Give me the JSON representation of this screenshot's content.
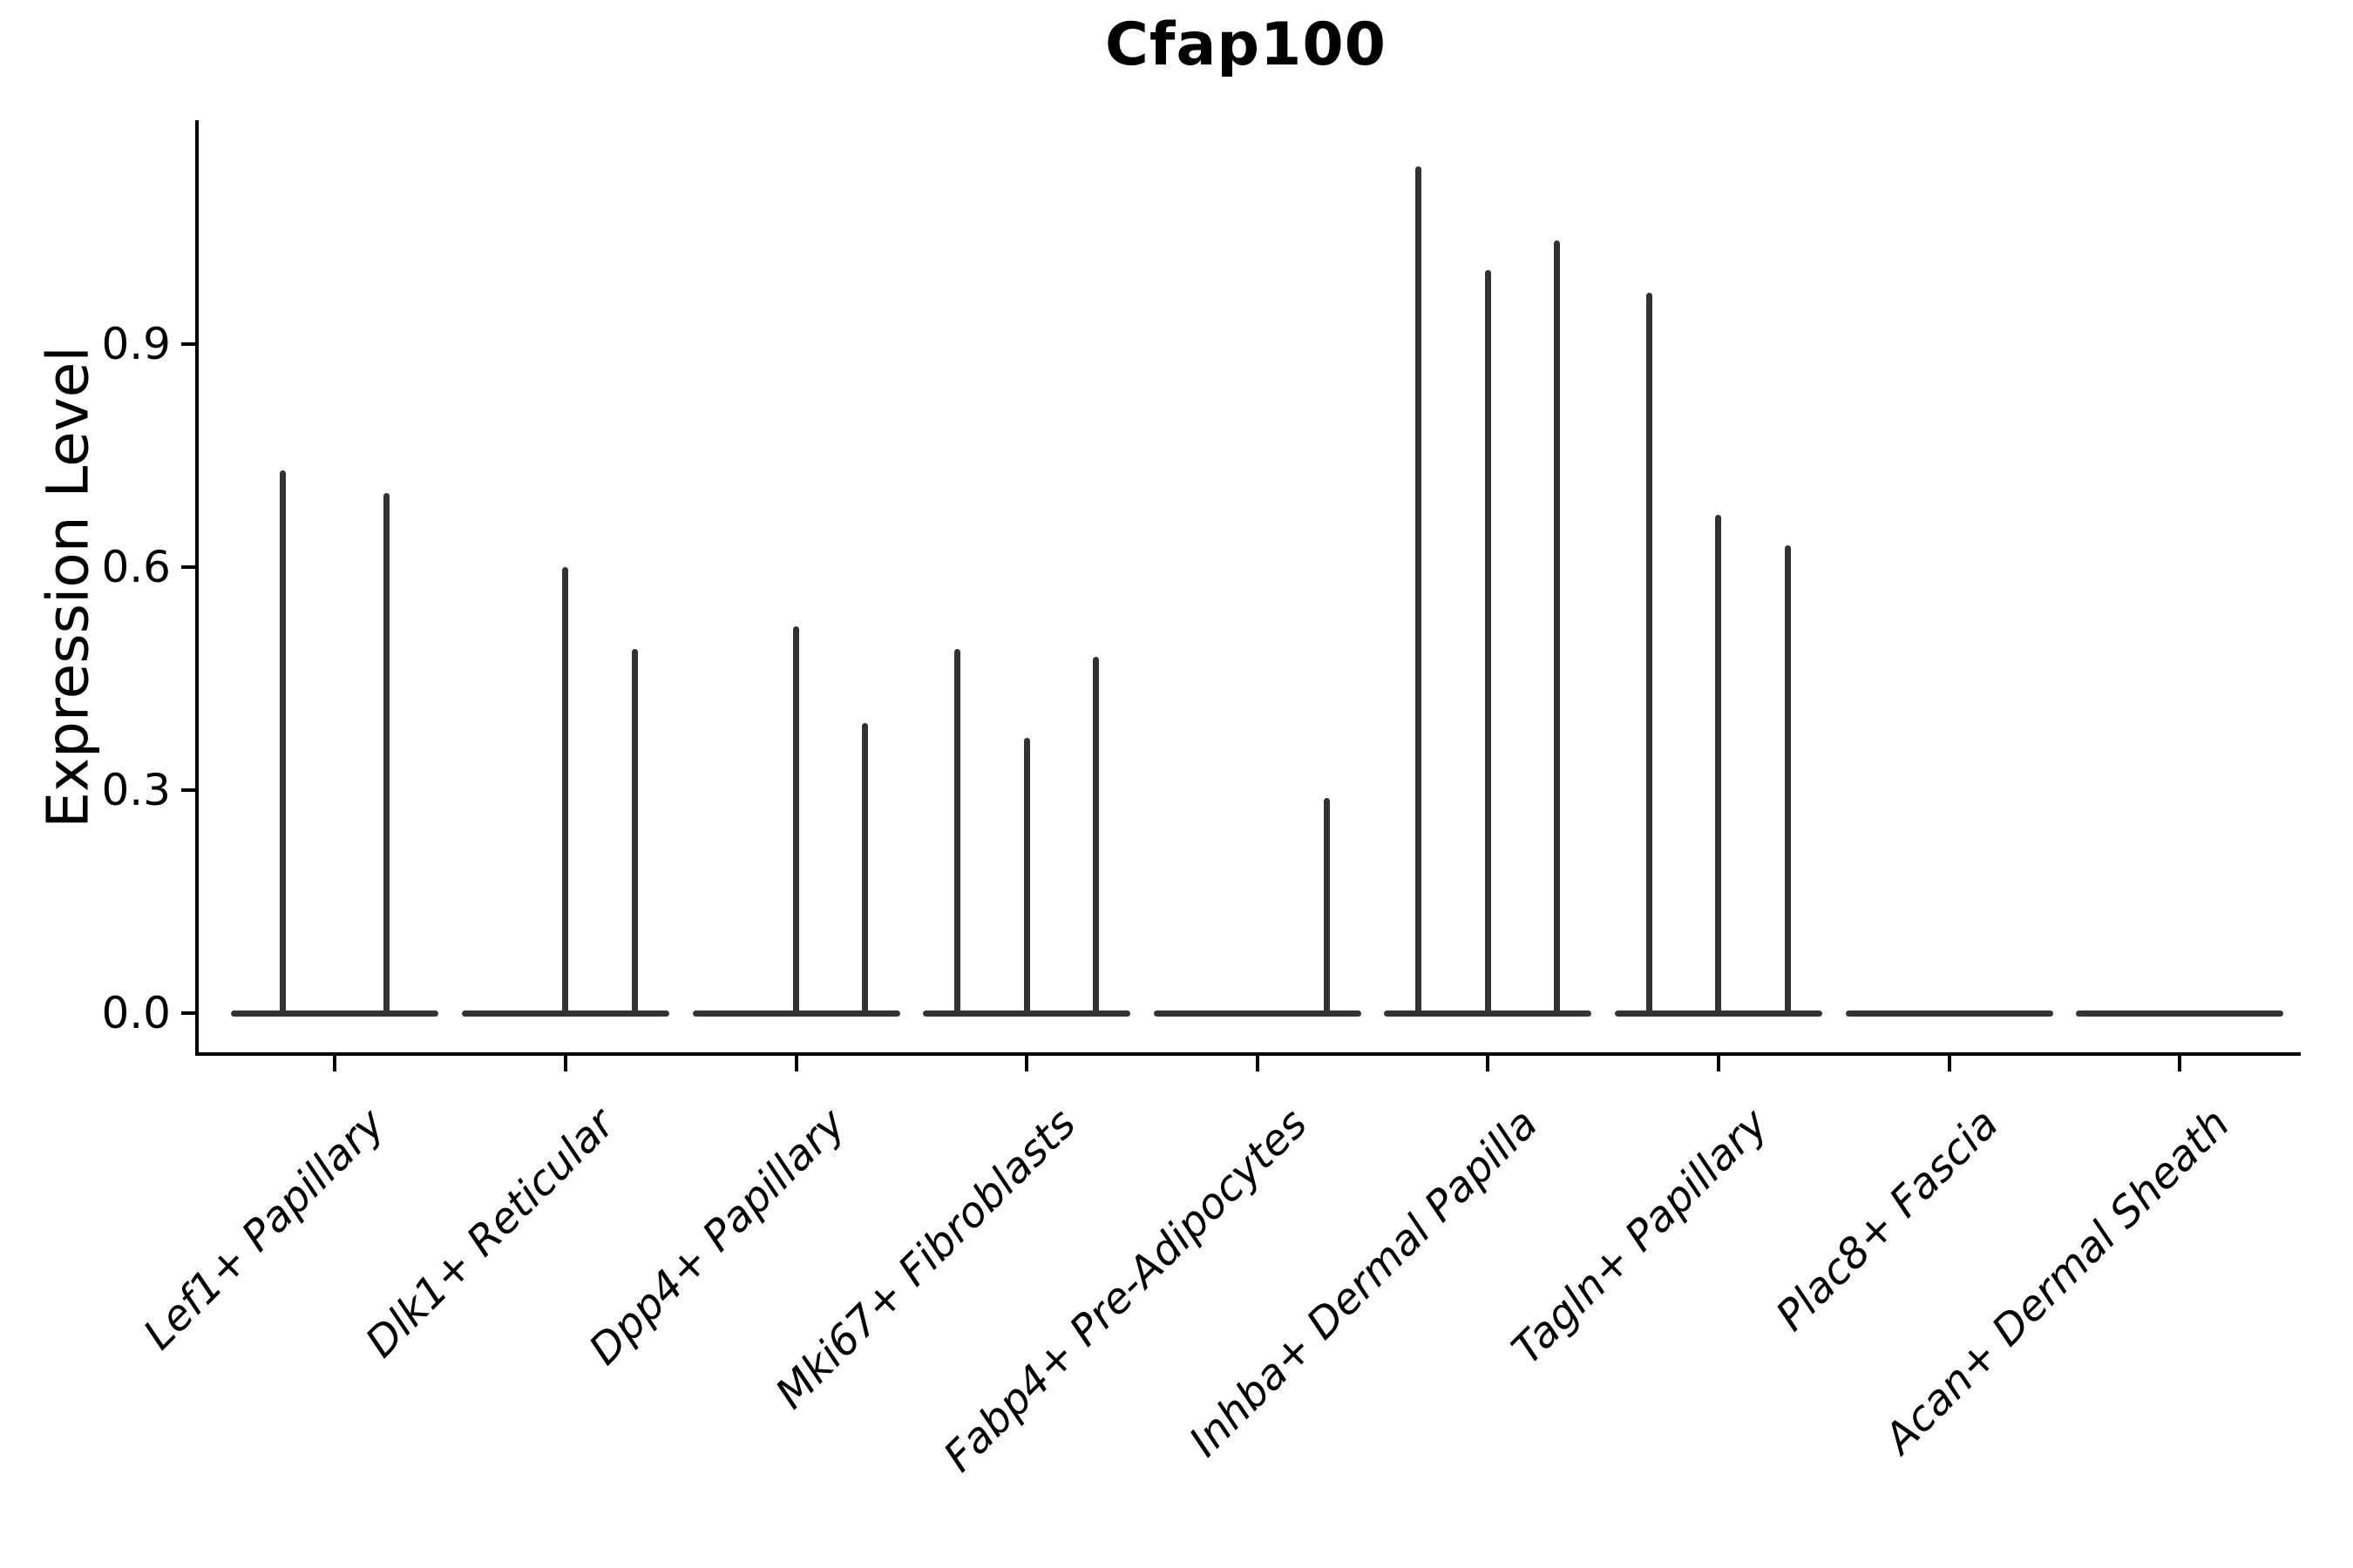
{
  "figure": {
    "title": "Cfap100",
    "ylabel": "Expression Level"
  },
  "chart_data": {
    "type": "violin",
    "title": "Cfap100",
    "xlabel": "",
    "ylabel": "Expression Level",
    "ylim": [
      0,
      1.2
    ],
    "yticks": [
      0.0,
      0.3,
      0.6,
      0.9
    ],
    "ytick_labels": [
      "0.0",
      "0.3",
      "0.6",
      "0.9"
    ],
    "grid": false,
    "legend": "none",
    "categories": [
      "Lef1+ Papillary",
      "Dlk1+ Reticular",
      "Dpp4+ Papillary",
      "Mki67+ Fibroblasts",
      "Fabp4+ Pre-Adipocytes",
      "Inhba+ Dermal Papilla",
      "Tagln+ Papillary",
      "Plac8+ Fascia",
      "Acan+ Dermal Sheath"
    ],
    "groups": [
      {
        "label": "Lef1+ Papillary",
        "violins": [
          0.73,
          0.7
        ]
      },
      {
        "label": "Dlk1+ Reticular",
        "violins": [
          0,
          0.6,
          0.49
        ]
      },
      {
        "label": "Dpp4+ Papillary",
        "violins": [
          0,
          0.52,
          0.39
        ]
      },
      {
        "label": "Mki67+ Fibroblasts",
        "violins": [
          0.49,
          0.37,
          0.48
        ]
      },
      {
        "label": "Fabp4+ Pre-Adipocytes",
        "violins": [
          0,
          0,
          0.29
        ]
      },
      {
        "label": "Inhba+ Dermal Papilla",
        "violins": [
          1.14,
          1.0,
          1.04
        ]
      },
      {
        "label": "Tagln+ Papillary",
        "violins": [
          0.97,
          0.67,
          0.63
        ]
      },
      {
        "label": "Plac8+ Fascia",
        "violins": [
          0,
          0,
          0
        ]
      },
      {
        "label": "Acan+ Dermal Sheath",
        "violins": [
          0,
          0,
          0
        ]
      }
    ],
    "style": {
      "violin_color": "#333333",
      "axis_color": "#000000",
      "background": "#ffffff"
    }
  }
}
